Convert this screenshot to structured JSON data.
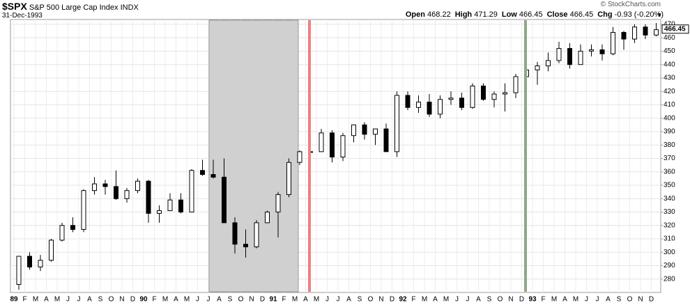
{
  "header": {
    "symbol": "$SPX",
    "name": "S&P 500 Large Cap Index",
    "exchange": "INDX",
    "date": "31-Dec-1993",
    "copyright": "© StockCharts.com",
    "quote": [
      {
        "label": "Open",
        "value": 468.22
      },
      {
        "label": "High",
        "value": 471.29
      },
      {
        "label": "Low",
        "value": 466.45
      },
      {
        "label": "Close",
        "value": 466.45
      },
      {
        "label": "Chg",
        "value": "-0.93 (-0.20%)"
      }
    ]
  },
  "chart_data": {
    "type": "candlestick",
    "last_value": 466.45,
    "categories": [
      "89",
      "F",
      "M",
      "A",
      "M",
      "J",
      "J",
      "A",
      "S",
      "O",
      "N",
      "D",
      "90",
      "F",
      "M",
      "A",
      "M",
      "J",
      "J",
      "A",
      "S",
      "O",
      "N",
      "D",
      "91",
      "F",
      "M",
      "A",
      "M",
      "J",
      "J",
      "A",
      "S",
      "O",
      "N",
      "D",
      "92",
      "F",
      "M",
      "A",
      "M",
      "J",
      "J",
      "A",
      "S",
      "O",
      "N",
      "D",
      "93",
      "F",
      "M",
      "A",
      "M",
      "J",
      "J",
      "A",
      "S",
      "O",
      "N",
      "D"
    ],
    "open": [
      276,
      297,
      289,
      294,
      309,
      320,
      317,
      346,
      351,
      349,
      340,
      346,
      353,
      329,
      331,
      339,
      330,
      361,
      358,
      356,
      322,
      306,
      304,
      322,
      330,
      343,
      367,
      375,
      375,
      389,
      371,
      387,
      395,
      388,
      392,
      375,
      417,
      408,
      412,
      403,
      414,
      415,
      408,
      424,
      414,
      418,
      419,
      431,
      436,
      439,
      443,
      452,
      440,
      450,
      451,
      448,
      464,
      459,
      468,
      462
    ],
    "high": [
      297,
      300,
      298,
      310,
      322,
      326,
      347,
      356,
      354,
      361,
      348,
      355,
      354,
      335,
      344,
      344,
      362,
      369,
      369,
      370,
      326,
      317,
      324,
      331,
      345,
      370,
      376,
      385,
      392,
      391,
      389,
      395,
      397,
      392,
      396,
      420,
      420,
      417,
      418,
      417,
      420,
      419,
      426,
      426,
      420,
      426,
      433,
      437,
      442,
      449,
      457,
      456,
      455,
      455,
      455,
      468,
      465,
      470,
      470,
      471
    ],
    "low": [
      272,
      287,
      286,
      293,
      308,
      315,
      315,
      343,
      343,
      339,
      337,
      344,
      322,
      322,
      331,
      329,
      330,
      357,
      355,
      322,
      299,
      296,
      303,
      322,
      311,
      341,
      365,
      371,
      375,
      367,
      368,
      382,
      384,
      380,
      375,
      371,
      406,
      404,
      401,
      400,
      410,
      406,
      407,
      413,
      408,
      405,
      415,
      430,
      425,
      435,
      441,
      437,
      440,
      446,
      443,
      447,
      451,
      456,
      459,
      461
    ],
    "close": [
      297,
      289,
      294,
      309,
      320,
      317,
      346,
      351,
      349,
      340,
      346,
      353,
      329,
      331,
      339,
      330,
      361,
      358,
      356,
      322,
      306,
      304,
      322,
      330,
      343,
      367,
      375,
      375,
      389,
      371,
      387,
      395,
      388,
      392,
      375,
      417,
      408,
      412,
      403,
      414,
      415,
      408,
      424,
      414,
      418,
      419,
      431,
      436,
      439,
      443,
      452,
      440,
      450,
      451,
      448,
      464,
      459,
      468,
      462,
      466
    ],
    "ylim": [
      270,
      473.6
    ],
    "yticks": [
      280,
      290,
      300,
      310,
      320,
      330,
      340,
      350,
      360,
      370,
      380,
      390,
      400,
      410,
      420,
      430,
      440,
      450,
      460,
      470
    ],
    "grid": true
  }
}
